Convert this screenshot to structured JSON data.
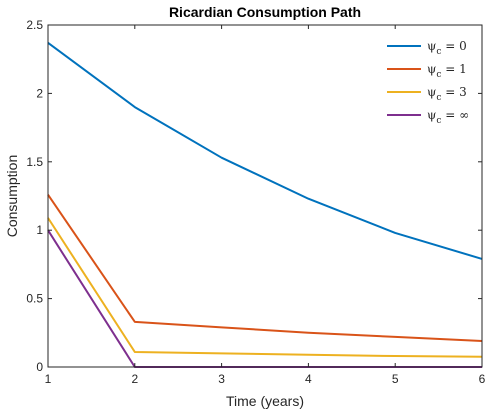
{
  "chart_data": {
    "type": "line",
    "title": "Ricardian Consumption Path",
    "xlabel": "Time (years)",
    "ylabel": "Consumption",
    "xlim": [
      1,
      6
    ],
    "ylim": [
      0,
      2.5
    ],
    "xticks": [
      "1",
      "2",
      "3",
      "4",
      "5",
      "6"
    ],
    "yticks": [
      "0",
      "0.5",
      "1",
      "1.5",
      "2",
      "2.5"
    ],
    "x": [
      1,
      2,
      3,
      4,
      5,
      6
    ],
    "legend_position": "top-right",
    "grid": false,
    "series": [
      {
        "name": "ψc = 0",
        "symbol": "ψ",
        "subscript": "c",
        "value_text": " = 0",
        "color": "#0072BD",
        "values": [
          2.37,
          1.9,
          1.53,
          1.23,
          0.98,
          0.79
        ]
      },
      {
        "name": "ψc = 1",
        "symbol": "ψ",
        "subscript": "c",
        "value_text": " = 1",
        "color": "#D95319",
        "values": [
          1.26,
          0.33,
          0.29,
          0.25,
          0.22,
          0.19
        ]
      },
      {
        "name": "ψc = 3",
        "symbol": "ψ",
        "subscript": "c",
        "value_text": " = 3",
        "color": "#EDB120",
        "values": [
          1.09,
          0.11,
          0.1,
          0.09,
          0.08,
          0.075
        ]
      },
      {
        "name": "ψc = ∞",
        "symbol": "ψ",
        "subscript": "c",
        "value_text": " = ∞",
        "color": "#7E2F8E",
        "values": [
          1.0,
          0.0,
          0.0,
          0.0,
          0.0,
          0.0
        ]
      }
    ]
  }
}
